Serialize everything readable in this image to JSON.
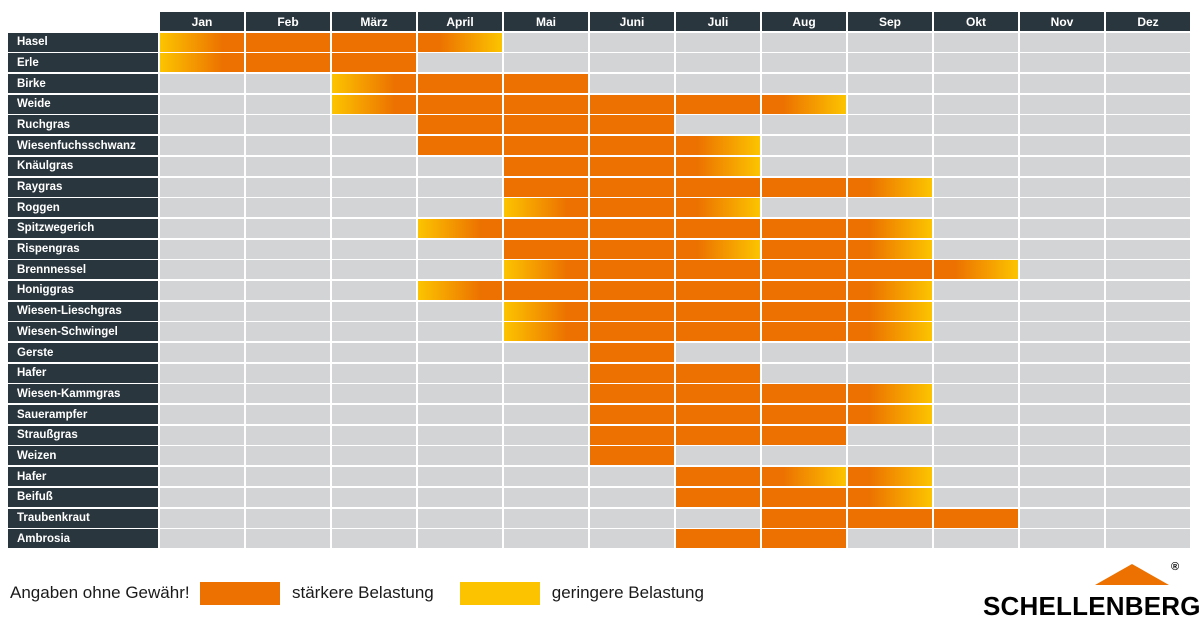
{
  "colors": {
    "strong": "#ec7100",
    "light": "#fcc400",
    "empty": "#d2d4d6",
    "dark": "#2a363d"
  },
  "chart_data": {
    "type": "heatmap",
    "months": [
      "Jan",
      "Feb",
      "März",
      "April",
      "Mai",
      "Juni",
      "Juli",
      "Aug",
      "Sep",
      "Okt",
      "Nov",
      "Dez"
    ],
    "cell_codes": {
      "s": "stärkere Belastung",
      "i": "geringere zu stärkere Belastung",
      "o": "stärkere zu geringere Belastung",
      "": "keine Belastung"
    },
    "rows": [
      {
        "label": "Hasel",
        "cells": [
          "i",
          "s",
          "s",
          "o",
          "",
          "",
          "",
          "",
          "",
          "",
          "",
          ""
        ]
      },
      {
        "label": "Erle",
        "cells": [
          "i",
          "s",
          "s",
          "",
          "",
          "",
          "",
          "",
          "",
          "",
          "",
          ""
        ]
      },
      {
        "label": "Birke",
        "cells": [
          "",
          "",
          "i",
          "s",
          "s",
          "",
          "",
          "",
          "",
          "",
          "",
          ""
        ]
      },
      {
        "label": "Weide",
        "cells": [
          "",
          "",
          "i",
          "s",
          "s",
          "s",
          "s",
          "o",
          "",
          "",
          "",
          ""
        ]
      },
      {
        "label": "Ruchgras",
        "cells": [
          "",
          "",
          "",
          "s",
          "s",
          "s",
          "",
          "",
          "",
          "",
          "",
          ""
        ]
      },
      {
        "label": "Wiesenfuchsschwanz",
        "cells": [
          "",
          "",
          "",
          "s",
          "s",
          "s",
          "o",
          "",
          "",
          "",
          "",
          ""
        ]
      },
      {
        "label": "Knäulgras",
        "cells": [
          "",
          "",
          "",
          "",
          "s",
          "s",
          "o",
          "",
          "",
          "",
          "",
          ""
        ]
      },
      {
        "label": "Raygras",
        "cells": [
          "",
          "",
          "",
          "",
          "s",
          "s",
          "s",
          "s",
          "o",
          "",
          "",
          ""
        ]
      },
      {
        "label": "Roggen",
        "cells": [
          "",
          "",
          "",
          "",
          "i",
          "s",
          "o",
          "",
          "",
          "",
          "",
          ""
        ]
      },
      {
        "label": "Spitzwegerich",
        "cells": [
          "",
          "",
          "",
          "i",
          "s",
          "s",
          "s",
          "s",
          "o",
          "",
          "",
          ""
        ]
      },
      {
        "label": "Rispengras",
        "cells": [
          "",
          "",
          "",
          "",
          "s",
          "s",
          "o",
          "s",
          "o",
          "",
          "",
          ""
        ]
      },
      {
        "label": "Brennnessel",
        "cells": [
          "",
          "",
          "",
          "",
          "i",
          "s",
          "s",
          "s",
          "s",
          "o",
          "",
          ""
        ]
      },
      {
        "label": "Honiggras",
        "cells": [
          "",
          "",
          "",
          "i",
          "s",
          "s",
          "s",
          "s",
          "o",
          "",
          "",
          ""
        ]
      },
      {
        "label": "Wiesen-Lieschgras",
        "cells": [
          "",
          "",
          "",
          "",
          "i",
          "s",
          "s",
          "s",
          "o",
          "",
          "",
          ""
        ]
      },
      {
        "label": "Wiesen-Schwingel",
        "cells": [
          "",
          "",
          "",
          "",
          "i",
          "s",
          "s",
          "s",
          "o",
          "",
          "",
          ""
        ]
      },
      {
        "label": "Gerste",
        "cells": [
          "",
          "",
          "",
          "",
          "",
          "s",
          "",
          "",
          "",
          "",
          "",
          ""
        ]
      },
      {
        "label": "Hafer",
        "cells": [
          "",
          "",
          "",
          "",
          "",
          "s",
          "s",
          "",
          "",
          "",
          "",
          ""
        ]
      },
      {
        "label": "Wiesen-Kammgras",
        "cells": [
          "",
          "",
          "",
          "",
          "",
          "s",
          "s",
          "s",
          "o",
          "",
          "",
          ""
        ]
      },
      {
        "label": "Sauerampfer",
        "cells": [
          "",
          "",
          "",
          "",
          "",
          "s",
          "s",
          "s",
          "o",
          "",
          "",
          ""
        ]
      },
      {
        "label": "Straußgras",
        "cells": [
          "",
          "",
          "",
          "",
          "",
          "s",
          "s",
          "s",
          "",
          "",
          "",
          ""
        ]
      },
      {
        "label": "Weizen",
        "cells": [
          "",
          "",
          "",
          "",
          "",
          "s",
          "",
          "",
          "",
          "",
          "",
          ""
        ]
      },
      {
        "label": "Hafer",
        "cells": [
          "",
          "",
          "",
          "",
          "",
          "",
          "s",
          "o",
          "o",
          "",
          "",
          ""
        ]
      },
      {
        "label": "Beifuß",
        "cells": [
          "",
          "",
          "",
          "",
          "",
          "",
          "s",
          "s",
          "o",
          "",
          "",
          ""
        ]
      },
      {
        "label": "Traubenkraut",
        "cells": [
          "",
          "",
          "",
          "",
          "",
          "",
          "",
          "s",
          "s",
          "s",
          "",
          ""
        ]
      },
      {
        "label": "Ambrosia",
        "cells": [
          "",
          "",
          "",
          "",
          "",
          "",
          "s",
          "s",
          "",
          "",
          "",
          ""
        ]
      }
    ],
    "legend": [
      {
        "color": "strong",
        "label": "stärkere Belastung"
      },
      {
        "color": "light",
        "label": "geringere Belastung"
      }
    ]
  },
  "footer": {
    "disclaimer": "Angaben ohne Gewähr!",
    "legend_strong": "stärkere Belastung",
    "legend_light": "geringere Belastung"
  },
  "logo": {
    "text": "SCHELLENBERG",
    "registered": "®"
  }
}
